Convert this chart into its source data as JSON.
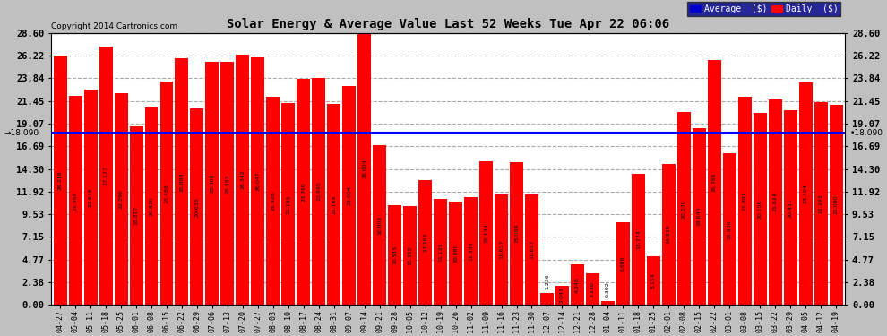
{
  "title": "Solar Energy & Average Value Last 52 Weeks Tue Apr 22 06:06",
  "copyright": "Copyright 2014 Cartronics.com",
  "average_line": 18.09,
  "bar_color": "#ff0000",
  "background_color": "#c0c0c0",
  "plot_bg_color": "#ffffff",
  "ylim": [
    0,
    28.6
  ],
  "yticks": [
    0.0,
    2.38,
    4.77,
    7.15,
    9.53,
    11.92,
    14.3,
    16.69,
    19.07,
    21.45,
    23.84,
    26.22,
    28.6
  ],
  "legend_avg_color": "#0000cc",
  "legend_daily_color": "#ff0000",
  "categories": [
    "04-27",
    "05-04",
    "05-11",
    "05-18",
    "05-25",
    "06-01",
    "06-08",
    "06-15",
    "06-22",
    "06-29",
    "07-06",
    "07-13",
    "07-20",
    "07-27",
    "08-03",
    "08-10",
    "08-17",
    "08-24",
    "08-31",
    "09-07",
    "09-14",
    "09-21",
    "09-28",
    "10-05",
    "10-12",
    "10-19",
    "10-26",
    "11-02",
    "11-09",
    "11-16",
    "11-23",
    "11-30",
    "12-07",
    "12-14",
    "12-21",
    "12-28",
    "01-04",
    "01-11",
    "01-18",
    "01-25",
    "02-01",
    "02-08",
    "02-15",
    "02-22",
    "03-01",
    "03-08",
    "03-15",
    "03-22",
    "03-29",
    "04-05",
    "04-12",
    "04-19"
  ],
  "values": [
    26.216,
    21.959,
    22.646,
    27.127,
    22.296,
    18.817,
    20.82,
    23.488,
    25.899,
    20.638,
    25.6,
    25.553,
    26.342,
    26.047,
    21.926,
    21.195,
    23.76,
    23.895,
    21.165,
    23.004,
    28.604,
    16.802,
    10.515,
    10.352,
    13.162,
    11.125,
    10.885,
    11.335,
    15.134,
    11.657,
    15.009,
    11.657,
    1.236,
    2.043,
    4.248,
    3.28,
    0.392,
    8.686,
    13.774,
    5.154,
    14.839,
    20.27,
    18.64,
    25.765,
    15.936,
    21.891,
    20.156,
    21.624,
    20.451,
    23.404,
    21.293,
    21.09
  ]
}
